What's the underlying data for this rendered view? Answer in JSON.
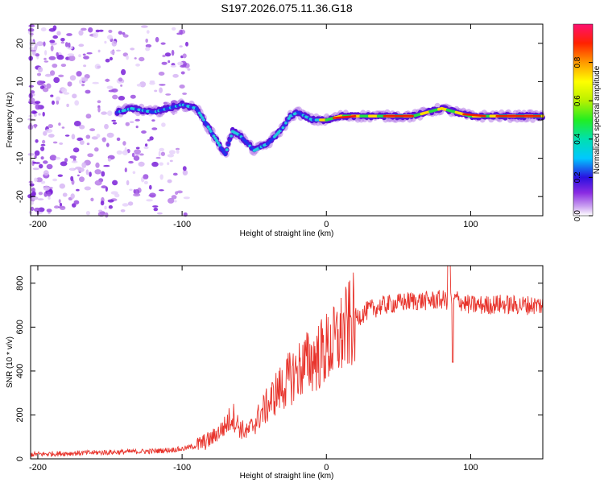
{
  "title": "S197.2026.075.11.36.G18",
  "chart_data": [
    {
      "type": "heatmap",
      "xlabel": "Height of straight line (km)",
      "ylabel": "Frequency (Hz)",
      "xlim": [
        -205,
        150
      ],
      "ylim": [
        -25,
        25
      ],
      "xticks": [
        -200,
        -100,
        0,
        100
      ],
      "yticks": [
        -20,
        -10,
        0,
        10,
        20
      ],
      "colorbar": {
        "label": "Normalized spectral amplitude",
        "range": [
          0,
          1
        ],
        "ticks": [
          "0.0",
          "0.2",
          "0.4",
          "0.6",
          "0.8"
        ]
      },
      "ridge": {
        "x": [
          -145,
          -135,
          -120,
          -110,
          -100,
          -90,
          -85,
          -80,
          -75,
          -70,
          -65,
          -60,
          -55,
          -50,
          -45,
          -40,
          -35,
          -30,
          -25,
          -20,
          -15,
          -10,
          -5,
          0,
          10,
          20,
          30,
          40,
          60,
          80,
          90,
          100,
          110,
          120,
          150
        ],
        "y": [
          2,
          3,
          2,
          3,
          4,
          3,
          0,
          -3,
          -6,
          -9,
          -3,
          -4,
          -6,
          -8,
          -7,
          -6,
          -4,
          -2,
          1,
          2,
          1,
          0,
          0,
          0,
          1,
          1,
          1,
          1,
          1,
          3,
          2,
          1,
          1,
          1,
          1
        ]
      }
    },
    {
      "type": "line",
      "xlabel": "Height of straight line (km)",
      "ylabel": "SNR (10 * v/v)",
      "xlim": [
        -205,
        150
      ],
      "ylim": [
        0,
        880
      ],
      "xticks": [
        -200,
        -100,
        0,
        100
      ],
      "yticks": [
        0,
        200,
        400,
        600,
        800
      ],
      "series": [
        {
          "name": "SNR",
          "color": "#e8342c",
          "x": [
            -205,
            -180,
            -150,
            -120,
            -100,
            -90,
            -80,
            -70,
            -65,
            -60,
            -55,
            -50,
            -45,
            -40,
            -35,
            -30,
            -25,
            -20,
            -15,
            -10,
            -5,
            0,
            5,
            10,
            15,
            20,
            25,
            30,
            40,
            50,
            60,
            70,
            80,
            85,
            90,
            95,
            100,
            110,
            120,
            130,
            140,
            150
          ],
          "values": [
            20,
            25,
            30,
            35,
            45,
            60,
            90,
            150,
            200,
            140,
            120,
            160,
            210,
            250,
            300,
            330,
            370,
            400,
            430,
            450,
            470,
            500,
            520,
            560,
            600,
            640,
            660,
            680,
            700,
            710,
            720,
            720,
            725,
            720,
            730,
            710,
            700,
            700,
            705,
            700,
            700,
            700
          ]
        }
      ]
    }
  ]
}
